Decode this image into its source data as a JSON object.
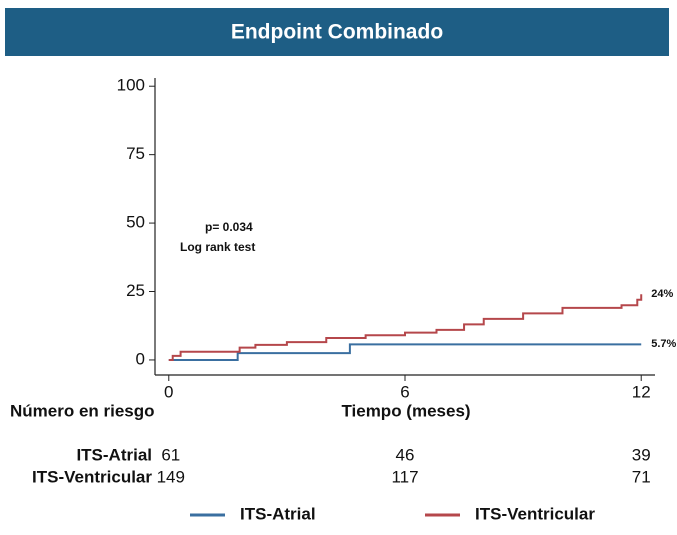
{
  "chart_data": {
    "type": "step",
    "title": "Endpoint Combinado",
    "x_label": "Tiempo (meses)",
    "annotations": [
      "p= 0.034",
      "Log rank test"
    ],
    "xlim": [
      -0.35,
      12.35
    ],
    "xticks": [
      0,
      6,
      12
    ],
    "ylim": [
      -5.5,
      103
    ],
    "yticks": [
      0,
      25,
      50,
      75,
      100
    ],
    "series": [
      {
        "name": "ITS-Atrial",
        "color": "#3a6fa0",
        "x": [
          0,
          1.75,
          4.6,
          12
        ],
        "values": [
          0,
          2.5,
          5.7,
          5.7
        ],
        "end_label": "5.7%"
      },
      {
        "name": "ITS-Ventricular",
        "color": "#b5474b",
        "x": [
          0,
          0.1,
          0.3,
          1.6,
          1.8,
          2.2,
          3.0,
          4.0,
          5.0,
          6.0,
          6.8,
          7.5,
          8.0,
          9.0,
          10.0,
          11.5,
          11.9,
          12
        ],
        "values": [
          0,
          1.5,
          3,
          3,
          4.5,
          5.5,
          6.5,
          8,
          9,
          10,
          11,
          13,
          15,
          17,
          19,
          20,
          22,
          24
        ],
        "end_label": "24%"
      }
    ],
    "risk_table": {
      "title": "Número en riesgo",
      "times": [
        0,
        6,
        12
      ],
      "rows": [
        {
          "name": "ITS-Atrial",
          "counts": [
            61,
            46,
            39
          ]
        },
        {
          "name": "ITS-Ventricular",
          "counts": [
            149,
            117,
            71
          ]
        }
      ]
    }
  }
}
